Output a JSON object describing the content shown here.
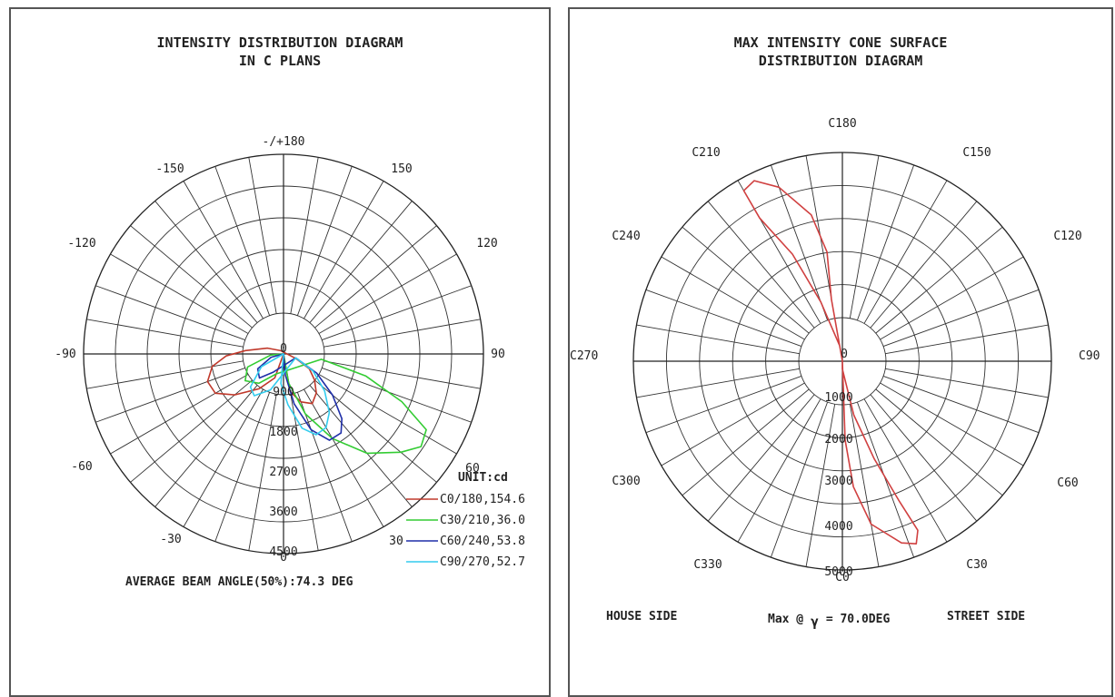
{
  "chart_data": [
    {
      "type": "polar-line",
      "title_line1": "INTENSITY DISTRIBUTION DIAGRAM",
      "title_line2": "IN C PLANS",
      "angle_labels": {
        "top": "-/+180",
        "upper_left": "-150",
        "upper_right": "150",
        "left_upper": "-120",
        "right_upper": "120",
        "left": "-90",
        "right": "90",
        "left_lower": "-60",
        "right_lower": "60",
        "lower_left": "-30",
        "lower_right": "30",
        "bottom": "0"
      },
      "center_label": "0",
      "radial_labels": [
        "900",
        "1800",
        "2700",
        "3600",
        "4500"
      ],
      "rmax": 4700,
      "unit_label": "UNIT:cd",
      "series": [
        {
          "name": "C0/180,154.6",
          "color": "#c0392b",
          "points": [
            [
              0,
              0
            ],
            [
              -20,
              600
            ],
            [
              -35,
              1000
            ],
            [
              -50,
              1500
            ],
            [
              -60,
              1850
            ],
            [
              -70,
              1900
            ],
            [
              -80,
              1700
            ],
            [
              -88,
              1350
            ],
            [
              -95,
              900
            ],
            [
              -110,
              400
            ],
            [
              -140,
              100
            ],
            [
              70,
              300
            ],
            [
              60,
              700
            ],
            [
              50,
              950
            ],
            [
              40,
              1200
            ],
            [
              30,
              1350
            ],
            [
              20,
              1200
            ],
            [
              10,
              900
            ],
            [
              0,
              0
            ]
          ]
        },
        {
          "name": "C30/210,36.0",
          "color": "#33cc33",
          "points": [
            [
              0,
              0
            ],
            [
              10,
              700
            ],
            [
              20,
              1500
            ],
            [
              30,
              2300
            ],
            [
              40,
              3050
            ],
            [
              50,
              3600
            ],
            [
              56,
              3900
            ],
            [
              62,
              3800
            ],
            [
              68,
              3000
            ],
            [
              75,
              2000
            ],
            [
              82,
              900
            ],
            [
              -20,
              500
            ],
            [
              -40,
              900
            ],
            [
              -55,
              1100
            ],
            [
              -70,
              900
            ],
            [
              -85,
              300
            ],
            [
              0,
              0
            ]
          ]
        },
        {
          "name": "C60/240,53.8",
          "color": "#1f2fa8",
          "points": [
            [
              0,
              0
            ],
            [
              5,
              500
            ],
            [
              12,
              1200
            ],
            [
              20,
              1900
            ],
            [
              28,
              2300
            ],
            [
              36,
              2300
            ],
            [
              42,
              2050
            ],
            [
              50,
              1500
            ],
            [
              60,
              900
            ],
            [
              72,
              300
            ],
            [
              -30,
              500
            ],
            [
              -45,
              800
            ],
            [
              -60,
              700
            ],
            [
              -75,
              300
            ],
            [
              0,
              0
            ]
          ]
        },
        {
          "name": "C90/270,52.7",
          "color": "#33ccee",
          "points": [
            [
              0,
              0
            ],
            [
              -5,
              700
            ],
            [
              5,
              1200
            ],
            [
              14,
              1800
            ],
            [
              22,
              2050
            ],
            [
              30,
              2000
            ],
            [
              38,
              1750
            ],
            [
              48,
              1300
            ],
            [
              60,
              800
            ],
            [
              72,
              300
            ],
            [
              -20,
              900
            ],
            [
              -35,
              1200
            ],
            [
              -45,
              1100
            ],
            [
              -60,
              600
            ],
            [
              0,
              0
            ]
          ]
        }
      ],
      "footer": "AVERAGE BEAM ANGLE(50%):74.3 DEG"
    },
    {
      "type": "polar-line",
      "title_line1": "MAX INTENSITY CONE SURFACE",
      "title_line2": "DISTRIBUTION DIAGRAM",
      "angle_labels": {
        "top": "C180",
        "upper_left": "C210",
        "upper_right": "C150",
        "left_upper": "C240",
        "right_upper": "C120",
        "left": "C270",
        "right": "C90",
        "left_lower": "C300",
        "right_lower": "C60",
        "lower_left": "C330",
        "lower_right": "C30",
        "bottom": "C0"
      },
      "center_label": "0",
      "radial_labels": [
        "1000",
        "2000",
        "3000",
        "4000",
        "5000"
      ],
      "rmax": 5300,
      "series": [
        {
          "name": "",
          "color": "#d04040",
          "points": [
            [
              0,
              0
            ],
            [
              2,
              2000
            ],
            [
              5,
              3200
            ],
            [
              10,
              4200
            ],
            [
              18,
              4850
            ],
            [
              22,
              5000
            ],
            [
              24,
              4700
            ],
            [
              22,
              3800
            ],
            [
              18,
              2600
            ],
            [
              12,
              1400
            ],
            [
              0,
              200
            ],
            [
              0,
              0
            ],
            [
              -170,
              200
            ],
            [
              -170,
              1600
            ],
            [
              -172,
              2800
            ],
            [
              -168,
              3800
            ],
            [
              -160,
              4700
            ],
            [
              -154,
              5100
            ],
            [
              -150,
              5000
            ],
            [
              -150,
              4200
            ],
            [
              -155,
              3000
            ],
            [
              -160,
              1600
            ],
            [
              -170,
              400
            ],
            [
              0,
              0
            ]
          ]
        }
      ],
      "footer_house": "HOUSE SIDE",
      "footer_max_prefix": "Max @",
      "footer_gamma": "γ",
      "footer_max_value": "= 70.0DEG",
      "footer_street": "STREET SIDE"
    }
  ]
}
